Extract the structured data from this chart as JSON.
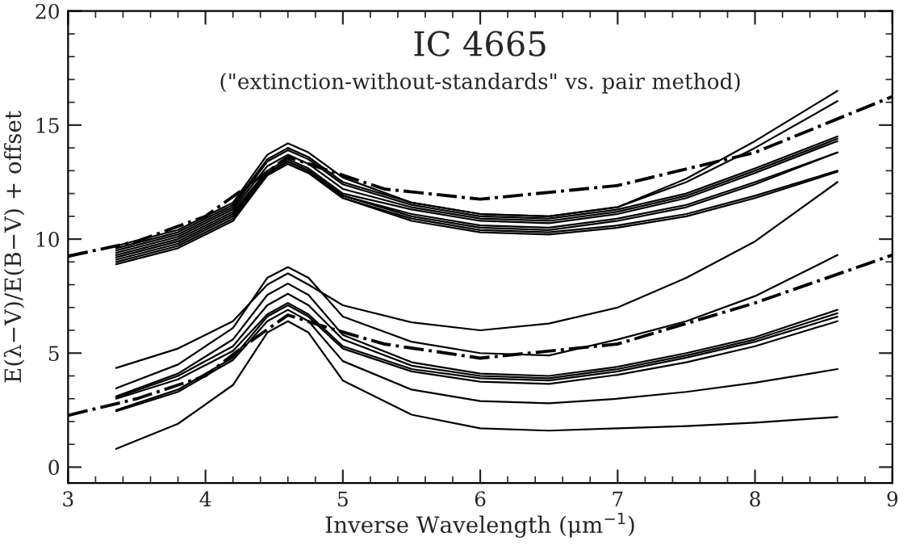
{
  "chart_data": {
    "type": "line",
    "title": "IC 4665",
    "subtitle": "(\"extinction-without-standards\" vs. pair method)",
    "xlabel": "Inverse Wavelength (μm$^{−1}$)",
    "ylabel": "E(λ−V)/E(B−V) + offset",
    "x": [
      3.35,
      3.8,
      4.2,
      4.45,
      4.6,
      4.75,
      5.0,
      5.5,
      6.0,
      6.5,
      7.0,
      7.5,
      8.0,
      8.6
    ],
    "xlim": [
      3,
      9
    ],
    "ylim": [
      -0.7,
      20
    ],
    "xticks": [
      3,
      4,
      5,
      6,
      7,
      8,
      9
    ],
    "yticks": [
      0,
      5,
      10,
      15,
      20
    ],
    "grid": false,
    "marker": "none",
    "series": [
      {
        "color": "#000000",
        "line_style": "solid",
        "values": [
          9.7,
          10.4,
          11.6,
          13.7,
          14.2,
          13.8,
          12.7,
          11.6,
          11.1,
          11.0,
          11.4,
          12.65,
          14.3,
          16.5
        ]
      },
      {
        "color": "#000000",
        "line_style": "solid",
        "values": [
          9.6,
          10.3,
          11.5,
          13.5,
          14.0,
          13.6,
          12.5,
          11.6,
          11.1,
          11.0,
          11.4,
          12.5,
          14.0,
          16.05
        ]
      },
      {
        "color": "#000000",
        "line_style": "solid",
        "values": [
          9.5,
          10.2,
          11.4,
          13.4,
          13.9,
          13.5,
          12.4,
          11.5,
          11.0,
          10.9,
          11.3,
          12.0,
          13.1,
          14.5
        ]
      },
      {
        "color": "#000000",
        "line_style": "solid",
        "values": [
          9.4,
          10.1,
          11.3,
          13.2,
          13.7,
          13.3,
          12.2,
          11.4,
          10.9,
          10.8,
          11.2,
          11.9,
          13.0,
          14.4
        ]
      },
      {
        "color": "#000000",
        "line_style": "solid",
        "values": [
          9.3,
          10.0,
          11.2,
          13.0,
          13.5,
          13.1,
          12.0,
          11.3,
          10.8,
          10.7,
          11.1,
          11.8,
          12.9,
          14.3
        ]
      },
      {
        "color": "#000000",
        "line_style": "solid",
        "values": [
          9.2,
          9.9,
          11.1,
          12.9,
          13.4,
          13.0,
          11.9,
          11.1,
          10.6,
          10.5,
          10.9,
          11.5,
          12.5,
          13.8
        ]
      },
      {
        "color": "#000000",
        "line_style": "solid",
        "values": [
          9.1,
          9.8,
          11.0,
          12.9,
          13.4,
          13.0,
          11.9,
          11.0,
          10.5,
          10.4,
          10.8,
          11.4,
          12.4,
          13.8
        ]
      },
      {
        "color": "#000000",
        "line_style": "solid",
        "values": [
          9.0,
          9.7,
          10.9,
          12.8,
          13.3,
          12.9,
          11.8,
          10.9,
          10.4,
          10.3,
          10.6,
          11.1,
          11.9,
          13.0
        ]
      },
      {
        "color": "#000000",
        "line_style": "solid",
        "values": [
          8.9,
          9.6,
          10.8,
          12.8,
          13.3,
          12.9,
          11.8,
          10.8,
          10.3,
          10.2,
          10.5,
          11.0,
          11.8,
          12.95
        ]
      },
      {
        "color": "#000000",
        "line_style": "solid",
        "values": [
          4.35,
          5.2,
          6.4,
          8.0,
          8.5,
          8.0,
          7.1,
          6.35,
          6.0,
          6.3,
          7.0,
          8.3,
          9.9,
          12.5
        ]
      },
      {
        "color": "#000000",
        "line_style": "solid",
        "values": [
          3.46,
          4.5,
          6.1,
          8.3,
          8.77,
          8.3,
          6.6,
          5.5,
          5.0,
          4.9,
          5.6,
          6.4,
          7.5,
          9.3
        ]
      },
      {
        "color": "#000000",
        "line_style": "solid",
        "values": [
          3.1,
          4.1,
          5.6,
          7.55,
          8.05,
          7.55,
          5.8,
          4.6,
          4.1,
          4.0,
          4.4,
          5.0,
          5.7,
          6.9
        ]
      },
      {
        "color": "#000000",
        "line_style": "solid",
        "values": [
          3.05,
          4.0,
          5.3,
          7.1,
          7.6,
          7.1,
          5.6,
          4.45,
          4.0,
          3.9,
          4.3,
          4.9,
          5.6,
          6.75
        ]
      },
      {
        "color": "#000000",
        "line_style": "solid",
        "values": [
          3.0,
          3.85,
          5.1,
          6.7,
          7.2,
          6.7,
          5.3,
          4.3,
          3.9,
          3.8,
          4.2,
          4.8,
          5.5,
          6.6
        ]
      },
      {
        "color": "#000000",
        "line_style": "solid",
        "values": [
          2.5,
          3.4,
          4.8,
          6.6,
          7.1,
          6.6,
          5.2,
          4.2,
          3.75,
          3.65,
          4.05,
          4.6,
          5.3,
          6.4
        ]
      },
      {
        "color": "#000000",
        "line_style": "solid",
        "values": [
          2.45,
          3.3,
          4.7,
          6.4,
          6.9,
          6.4,
          4.65,
          3.4,
          2.9,
          2.8,
          3.0,
          3.3,
          3.7,
          4.3
        ]
      },
      {
        "color": "#000000",
        "line_style": "solid",
        "values": [
          0.8,
          1.9,
          3.6,
          5.9,
          6.4,
          5.9,
          3.8,
          2.3,
          1.7,
          1.6,
          1.7,
          1.8,
          1.95,
          2.2
        ]
      },
      {
        "color": "#000000",
        "line_style": "dashdot",
        "x": [
          3,
          3.5,
          4,
          4.3,
          4.6,
          4.9,
          5.3,
          6,
          7,
          8,
          9
        ],
        "values": [
          9.25,
          9.9,
          11.0,
          12.3,
          13.6,
          13.0,
          12.2,
          11.75,
          12.35,
          13.8,
          16.25
        ]
      },
      {
        "color": "#000000",
        "line_style": "dashdot",
        "x": [
          3,
          3.5,
          4,
          4.3,
          4.6,
          4.9,
          5.3,
          6,
          7,
          8,
          9
        ],
        "values": [
          2.27,
          3.0,
          4.0,
          5.4,
          6.67,
          6.1,
          5.4,
          4.78,
          5.4,
          7.2,
          9.3
        ]
      }
    ]
  }
}
